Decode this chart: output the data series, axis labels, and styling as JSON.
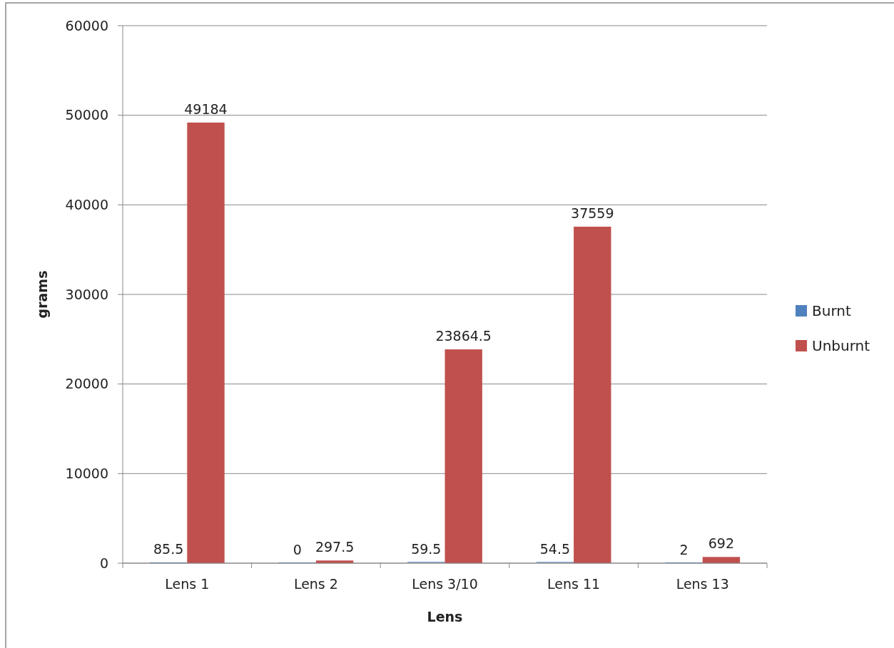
{
  "chart_data": {
    "type": "bar",
    "xlabel": "Lens",
    "ylabel": "grams",
    "categories": [
      "Lens 1",
      "Lens 2",
      "Lens 3/10",
      "Lens 11",
      "Lens 13"
    ],
    "series": [
      {
        "name": "Burnt",
        "color": "#4f81bd",
        "values": [
          85.5,
          0,
          59.5,
          54.5,
          2
        ]
      },
      {
        "name": "Unburnt",
        "color": "#c0504d",
        "values": [
          49184,
          297.5,
          23864.5,
          37559,
          692
        ]
      }
    ],
    "ylim": [
      0,
      60000
    ],
    "yticks": [
      0,
      10000,
      20000,
      30000,
      40000,
      50000,
      60000
    ],
    "grid": "y",
    "legend": "right",
    "data_labels": true
  }
}
